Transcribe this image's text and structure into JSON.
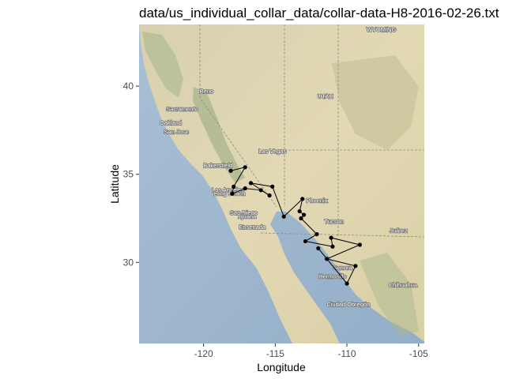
{
  "chart_data": {
    "type": "scatter",
    "title": "data/us_individual_collar_data/collar-data-H8-2016-02-26.txt",
    "xlabel": "Longitude",
    "ylabel": "Latitude",
    "xlim": [
      -124.5,
      -104.6
    ],
    "ylim": [
      25.4,
      43.5
    ],
    "xticks": [
      -120,
      -115,
      -110,
      -105
    ],
    "yticks": [
      30,
      35,
      40
    ],
    "grid": false,
    "legend": "none",
    "basemap": "terrain",
    "path_color": "#000000",
    "points": [
      {
        "x": -118.1,
        "y": 35.2
      },
      {
        "x": -117.1,
        "y": 35.4
      },
      {
        "x": -117.9,
        "y": 34.3
      },
      {
        "x": -118.0,
        "y": 33.9
      },
      {
        "x": -117.1,
        "y": 34.2
      },
      {
        "x": -116.0,
        "y": 34.1
      },
      {
        "x": -115.4,
        "y": 33.8
      },
      {
        "x": -116.7,
        "y": 34.5
      },
      {
        "x": -115.2,
        "y": 34.3
      },
      {
        "x": -114.4,
        "y": 32.6
      },
      {
        "x": -113.1,
        "y": 33.6
      },
      {
        "x": -113.3,
        "y": 32.9
      },
      {
        "x": -113.0,
        "y": 32.7
      },
      {
        "x": -113.2,
        "y": 32.5
      },
      {
        "x": -112.1,
        "y": 31.6
      },
      {
        "x": -112.9,
        "y": 31.2
      },
      {
        "x": -111.0,
        "y": 30.9
      },
      {
        "x": -111.1,
        "y": 31.4
      },
      {
        "x": -109.1,
        "y": 31.0
      },
      {
        "x": -111.4,
        "y": 30.2
      },
      {
        "x": -109.4,
        "y": 29.8
      },
      {
        "x": -110.0,
        "y": 28.8
      },
      {
        "x": -112.0,
        "y": 30.8
      }
    ],
    "map_labels": [
      {
        "text": "Reno",
        "x": -119.8,
        "y": 39.6
      },
      {
        "text": "Sacramento",
        "x": -121.5,
        "y": 38.6
      },
      {
        "text": "San Jose",
        "x": -121.9,
        "y": 37.3
      },
      {
        "text": "Oakland",
        "x": -122.3,
        "y": 37.8
      },
      {
        "text": "Las Vegas",
        "x": -115.2,
        "y": 36.2
      },
      {
        "text": "UTAH",
        "x": -111.5,
        "y": 39.3
      },
      {
        "text": "WYOMING",
        "x": -107.6,
        "y": 43.1
      },
      {
        "text": "Bakersfield",
        "x": -119.0,
        "y": 35.4
      },
      {
        "text": "Los Angeles",
        "x": -118.3,
        "y": 34.0
      },
      {
        "text": "Long Beach",
        "x": -118.2,
        "y": 33.8
      },
      {
        "text": "San Diego",
        "x": -117.2,
        "y": 32.7
      },
      {
        "text": "Tijuana",
        "x": -117.0,
        "y": 32.5
      },
      {
        "text": "Ensenada",
        "x": -116.6,
        "y": 31.9
      },
      {
        "text": "Phoenix",
        "x": -112.1,
        "y": 33.4
      },
      {
        "text": "Tucson",
        "x": -110.9,
        "y": 32.2
      },
      {
        "text": "Juárez",
        "x": -106.4,
        "y": 31.7
      },
      {
        "text": "Hermosillo",
        "x": -111.0,
        "y": 29.1
      },
      {
        "text": "Chihuahua",
        "x": -106.1,
        "y": 28.6
      },
      {
        "text": "Sonora",
        "x": -110.3,
        "y": 29.6
      },
      {
        "text": "Ciudad Obregón",
        "x": -109.9,
        "y": 27.5
      }
    ]
  }
}
